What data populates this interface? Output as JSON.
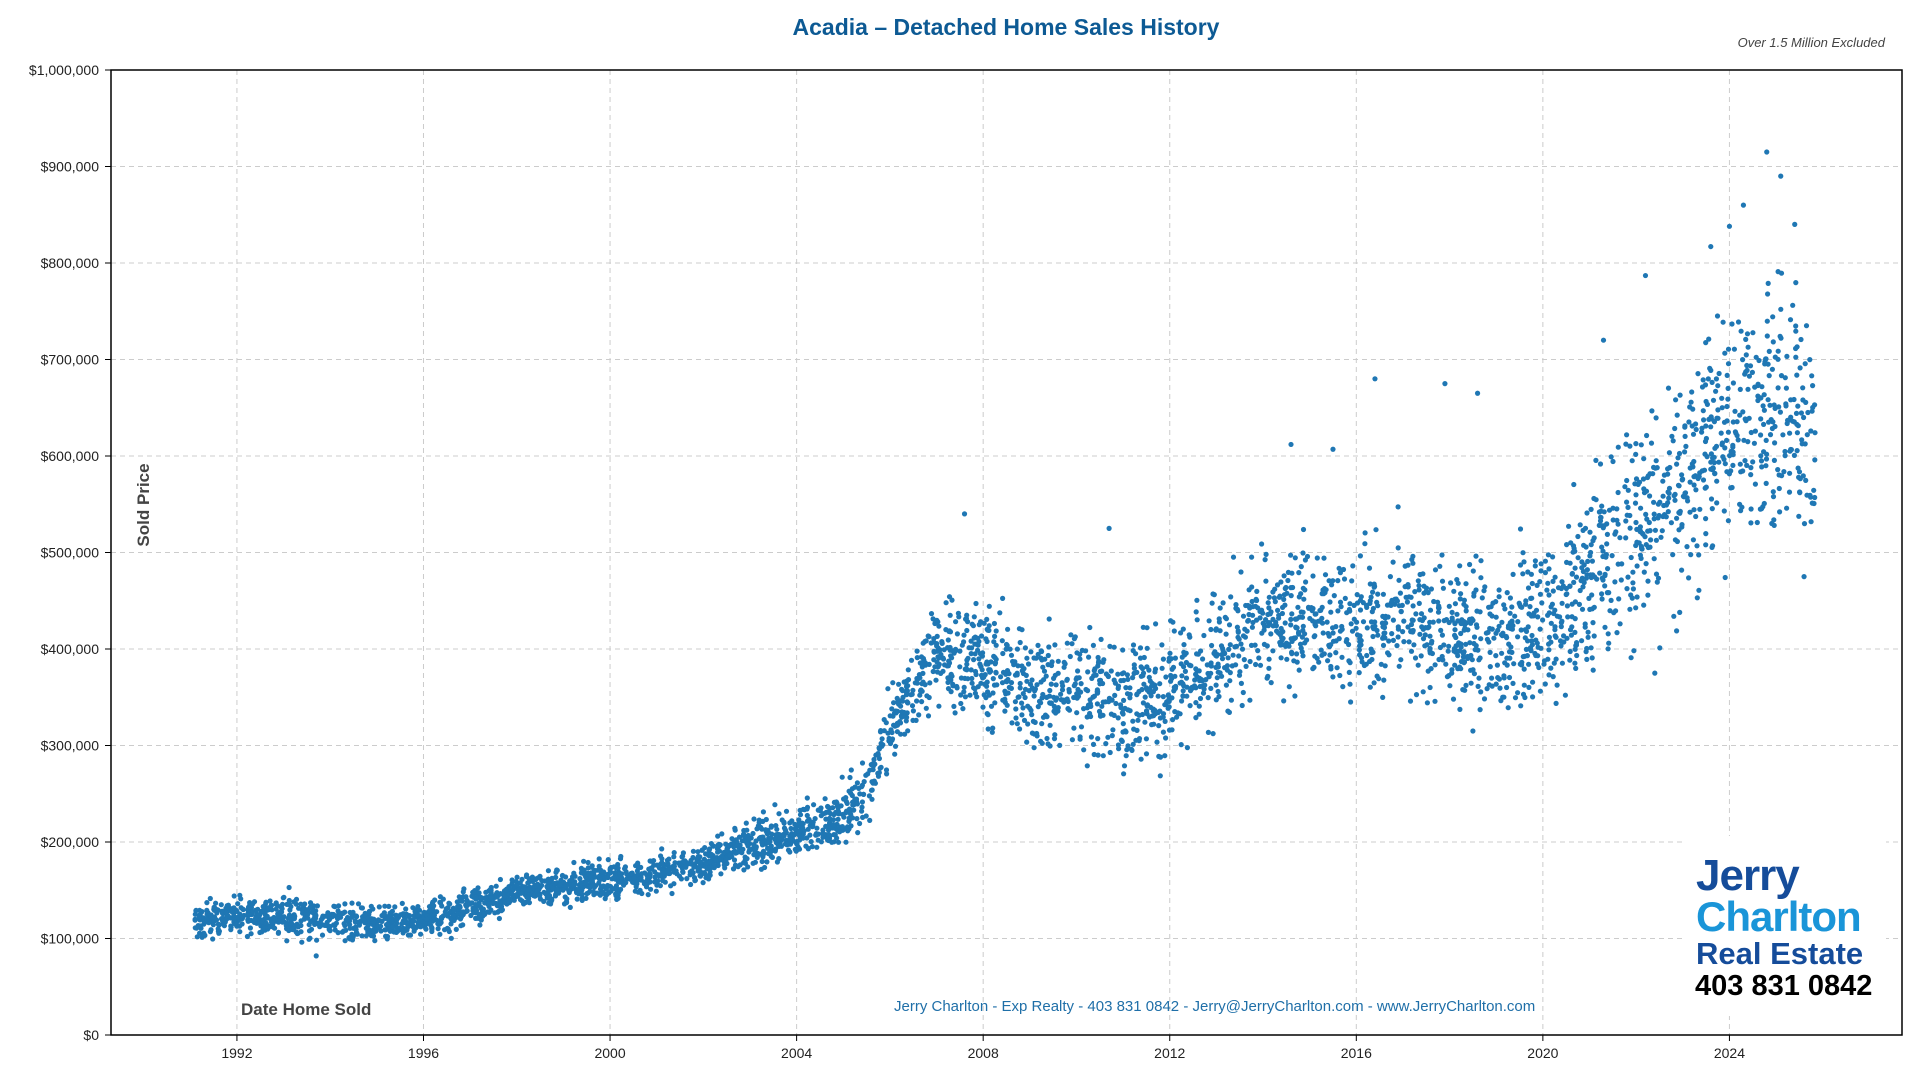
{
  "title": "Acadia – Detached Home Sales History",
  "note": "Over 1.5 Million Excluded",
  "footer": "Jerry Charlton - Exp Realty - 403 831 0842 - Jerry@JerryCharlton.com - www.JerryCharlton.com",
  "logo": {
    "line1": "Jerry",
    "line2": "Charlton",
    "line3": "Real Estate",
    "phone": "403 831 0842"
  },
  "colors": {
    "title": "#0d5a94",
    "points": "#1f77b4",
    "footer": "#1f6fa8",
    "grid": "#cccccc"
  },
  "chart_data": {
    "type": "scatter",
    "title": "Acadia – Detached Home Sales History",
    "xlabel": "Date Home Sold",
    "ylabel": "Sold Price",
    "xlim": [
      1989.3,
      2027.7
    ],
    "ylim": [
      0,
      1000000
    ],
    "x_ticks": [
      "1992",
      "1996",
      "2000",
      "2004",
      "2008",
      "2012",
      "2016",
      "2020",
      "2024"
    ],
    "y_ticks": [
      "$0",
      "$100,000",
      "$200,000",
      "$300,000",
      "$400,000",
      "$500,000",
      "$600,000",
      "$700,000",
      "$800,000",
      "$900,000",
      "$1,000,000"
    ],
    "grid": true,
    "legend": "none",
    "date_range": [
      1991.1,
      2025.85
    ],
    "trend_note_units": "year, median sold price, typical spread (±)",
    "trend": [
      [
        1991,
        120000,
        15000
      ],
      [
        1992,
        122000,
        15000
      ],
      [
        1993,
        122000,
        18000
      ],
      [
        1994,
        120000,
        15000
      ],
      [
        1995,
        115000,
        15000
      ],
      [
        1996,
        118000,
        15000
      ],
      [
        1997,
        130000,
        15000
      ],
      [
        1998,
        148000,
        12000
      ],
      [
        1999,
        155000,
        15000
      ],
      [
        2000,
        162000,
        15000
      ],
      [
        2001,
        165000,
        15000
      ],
      [
        2002,
        178000,
        15000
      ],
      [
        2003,
        198000,
        18000
      ],
      [
        2004,
        210000,
        20000
      ],
      [
        2005,
        230000,
        25000
      ],
      [
        2005.5,
        250000,
        28000
      ],
      [
        2006,
        320000,
        30000
      ],
      [
        2006.5,
        360000,
        35000
      ],
      [
        2007,
        395000,
        40000
      ],
      [
        2008,
        385000,
        45000
      ],
      [
        2009,
        355000,
        50000
      ],
      [
        2010,
        360000,
        50000
      ],
      [
        2011,
        345000,
        55000
      ],
      [
        2012,
        360000,
        55000
      ],
      [
        2013,
        390000,
        55000
      ],
      [
        2014,
        430000,
        55000
      ],
      [
        2015,
        430000,
        55000
      ],
      [
        2016,
        420000,
        55000
      ],
      [
        2017,
        440000,
        60000
      ],
      [
        2018,
        420000,
        60000
      ],
      [
        2019,
        405000,
        60000
      ],
      [
        2020,
        430000,
        70000
      ],
      [
        2021,
        470000,
        80000
      ],
      [
        2022,
        540000,
        100000
      ],
      [
        2023,
        560000,
        100000
      ],
      [
        2024,
        650000,
        110000
      ],
      [
        2025,
        640000,
        110000
      ],
      [
        2025.85,
        620000,
        110000
      ]
    ],
    "notable_points": [
      [
        1993.7,
        82000
      ],
      [
        2007.6,
        540000
      ],
      [
        2010.7,
        525000
      ],
      [
        2014.6,
        612000
      ],
      [
        2015.5,
        607000
      ],
      [
        2016.4,
        680000
      ],
      [
        2017.9,
        675000
      ],
      [
        2018.6,
        665000
      ],
      [
        2018.5,
        315000
      ],
      [
        2021.3,
        720000
      ],
      [
        2022.2,
        787000
      ],
      [
        2023.6,
        817000
      ],
      [
        2024.0,
        838000
      ],
      [
        2024.3,
        860000
      ],
      [
        2024.8,
        915000
      ],
      [
        2025.1,
        890000
      ],
      [
        2025.4,
        840000
      ],
      [
        2025.6,
        475000
      ],
      [
        2022.4,
        375000
      ]
    ]
  }
}
